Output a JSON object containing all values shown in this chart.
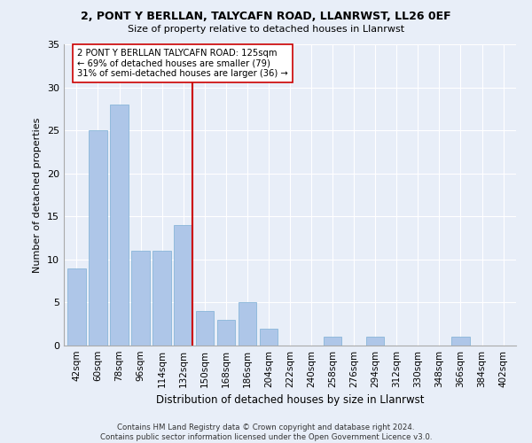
{
  "title1": "2, PONT Y BERLLAN, TALYCAFN ROAD, LLANRWST, LL26 0EF",
  "title2": "Size of property relative to detached houses in Llanrwst",
  "xlabel": "Distribution of detached houses by size in Llanrwst",
  "ylabel": "Number of detached properties",
  "categories": [
    "42sqm",
    "60sqm",
    "78sqm",
    "96sqm",
    "114sqm",
    "132sqm",
    "150sqm",
    "168sqm",
    "186sqm",
    "204sqm",
    "222sqm",
    "240sqm",
    "258sqm",
    "276sqm",
    "294sqm",
    "312sqm",
    "330sqm",
    "348sqm",
    "366sqm",
    "384sqm",
    "402sqm"
  ],
  "values": [
    9,
    25,
    28,
    11,
    11,
    14,
    4,
    3,
    5,
    2,
    0,
    0,
    1,
    0,
    1,
    0,
    0,
    0,
    1,
    0,
    0
  ],
  "bar_color": "#aec6e8",
  "bar_edge_color": "#7bafd4",
  "bar_width": 0.85,
  "vline_x_index": 5.42,
  "vline_color": "#cc0000",
  "annotation_text": "2 PONT Y BERLLAN TALYCAFN ROAD: 125sqm\n← 69% of detached houses are smaller (79)\n31% of semi-detached houses are larger (36) →",
  "annotation_box_color": "#ffffff",
  "annotation_box_edge": "#cc0000",
  "ylim": [
    0,
    35
  ],
  "yticks": [
    0,
    5,
    10,
    15,
    20,
    25,
    30,
    35
  ],
  "footer": "Contains HM Land Registry data © Crown copyright and database right 2024.\nContains public sector information licensed under the Open Government Licence v3.0.",
  "background_color": "#e8eef8",
  "grid_color": "#ffffff"
}
